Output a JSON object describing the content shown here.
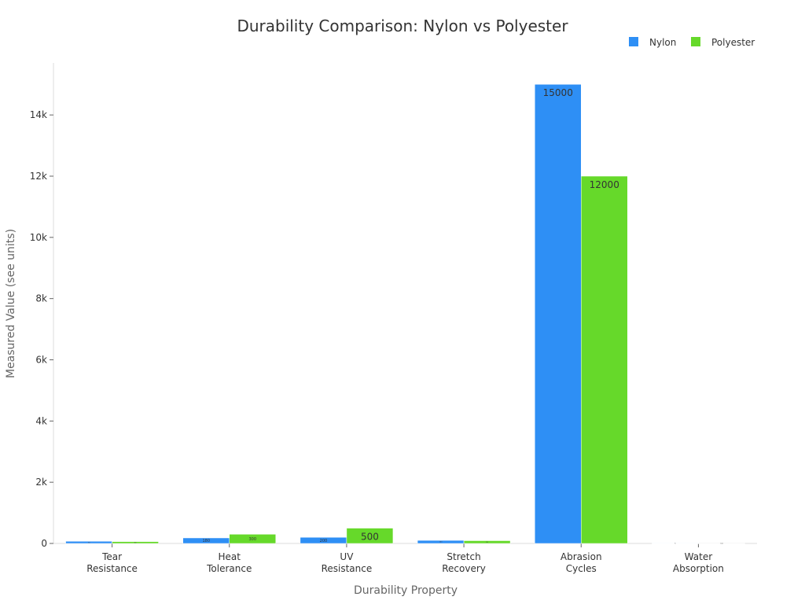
{
  "chart_data": {
    "type": "bar",
    "title": "Durability Comparison: Nylon vs Polyester",
    "xlabel": "Durability Property",
    "ylabel": "Measured Value (see units)",
    "categories": [
      [
        "Tear",
        "Resistance"
      ],
      [
        "Heat",
        "Tolerance"
      ],
      [
        "UV",
        "Resistance"
      ],
      [
        "Stretch",
        "Recovery"
      ],
      [
        "Abrasion",
        "Cycles"
      ],
      [
        "Water",
        "Absorption"
      ]
    ],
    "series": [
      {
        "name": "Nylon",
        "color": "#2e8ff5",
        "values": [
          70,
          180,
          200,
          100,
          15000,
          5
        ]
      },
      {
        "name": "Polyester",
        "color": "#66d92a",
        "values": [
          60,
          300,
          500,
          90,
          12000,
          0.4
        ]
      }
    ],
    "ylim": [
      0,
      15700
    ],
    "yticks": [
      0,
      2000,
      4000,
      6000,
      8000,
      10000,
      12000,
      14000
    ],
    "ytick_labels": [
      "0",
      "2k",
      "4k",
      "6k",
      "8k",
      "10k",
      "12k",
      "14k"
    ],
    "grid": false,
    "legend": "top-right"
  }
}
